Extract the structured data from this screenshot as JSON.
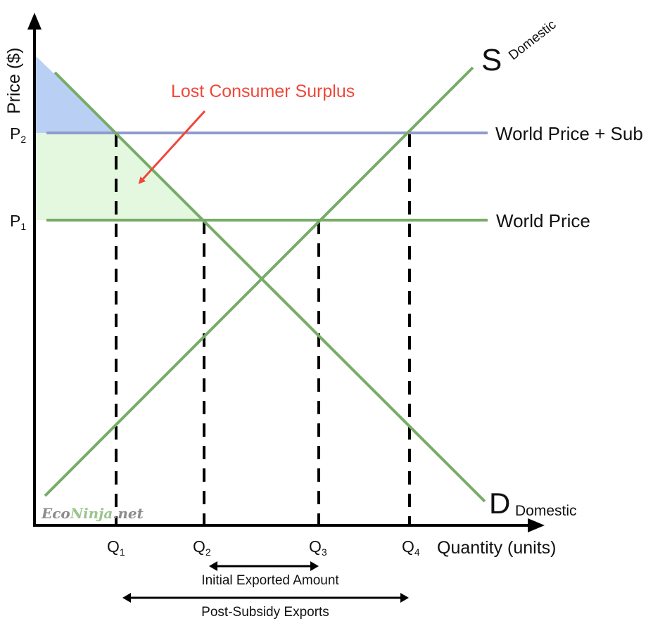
{
  "axes": {
    "y_label": "Price ($)",
    "x_label": "Quantity (units)"
  },
  "price_ticks": {
    "p2": {
      "main": "P",
      "sub": "2"
    },
    "p1": {
      "main": "P",
      "sub": "1"
    }
  },
  "quantity_ticks": [
    {
      "main": "Q",
      "sub": "1"
    },
    {
      "main": "Q",
      "sub": "2"
    },
    {
      "main": "Q",
      "sub": "3"
    },
    {
      "main": "Q",
      "sub": "4"
    }
  ],
  "curves": {
    "supply": {
      "main": "S",
      "sub": "Domestic"
    },
    "demand": {
      "main": "D",
      "sub": "Domestic"
    },
    "world_price_sub": "World Price + Sub",
    "world_price": "World Price"
  },
  "annotations": {
    "lost_consumer_surplus": "Lost Consumer Surplus",
    "initial_exports": "Initial Exported Amount",
    "post_subsidy_exports": "Post-Subsidy Exports"
  },
  "watermark": {
    "part1": "Eco",
    "part2": "Ninja",
    "part3": ".net"
  },
  "colors": {
    "curve_green": "#77ab68",
    "subsidy_line": "#8f9bcc",
    "lost_cs_fill": "#b9d0f4",
    "cs_fill": "#e3f8de",
    "annotation_red": "#f0473a"
  }
}
